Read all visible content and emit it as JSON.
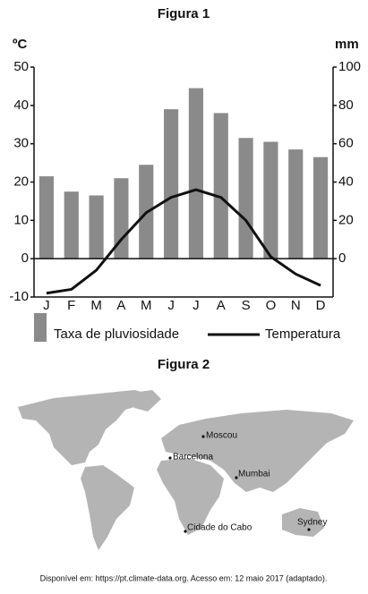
{
  "chart_data": {
    "type": "bar-line",
    "title": "Figura 1",
    "y_label": "ºC",
    "y2_label": "mm",
    "categories": [
      "J",
      "F",
      "M",
      "A",
      "M",
      "J",
      "J",
      "A",
      "S",
      "O",
      "N",
      "D"
    ],
    "series": [
      {
        "name": "Taxa de pluviosidade",
        "type": "bar",
        "axis": "y2",
        "color": "#8a8a8a",
        "values": [
          43,
          35,
          33,
          42,
          49,
          78,
          89,
          76,
          63,
          61,
          57,
          53
        ]
      },
      {
        "name": "Temperatura",
        "type": "line",
        "color": "#111111",
        "values": [
          -9,
          -8,
          -3,
          5,
          12,
          16,
          18,
          16,
          10,
          0.5,
          -4,
          -7
        ]
      }
    ],
    "ylim": [
      -10,
      50
    ],
    "yticks": [
      -10,
      0,
      10,
      20,
      30,
      40,
      50
    ],
    "y2lim": [
      -20,
      100
    ],
    "y2ticks": [
      0,
      20,
      40,
      60,
      80,
      100
    ]
  },
  "figure2": {
    "title": "Figura 2",
    "cities": [
      "Moscou",
      "Barcelona",
      "Mumbai",
      "Cidade do Cabo",
      "Sydney"
    ]
  },
  "source": "Disponível em: https://pt.climate-data.org. Acesso em: 12 maio 2017 (adaptado)."
}
